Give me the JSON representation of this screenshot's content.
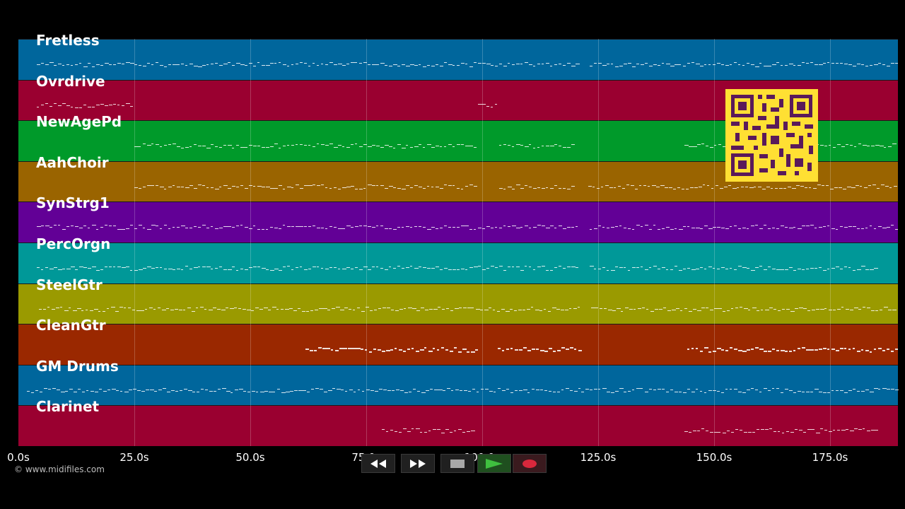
{
  "tracks": [
    {
      "name": "Fretless",
      "color": "#00669c"
    },
    {
      "name": "Ovrdrive",
      "color": "#9a0030"
    },
    {
      "name": "NewAgePd",
      "color": "#009a2a"
    },
    {
      "name": "AahChoir",
      "color": "#9a6400"
    },
    {
      "name": "SynStrg1",
      "color": "#620096"
    },
    {
      "name": "PercOrgn",
      "color": "#009898"
    },
    {
      "name": "SteelGtr",
      "color": "#9a9a00"
    },
    {
      "name": "CleanGtr",
      "color": "#9a2800"
    },
    {
      "name": "GM Drums",
      "color": "#00669c"
    },
    {
      "name": "Clarinet",
      "color": "#9a0030"
    }
  ],
  "timeline": {
    "ticks": [
      "0.0s",
      "25.0s",
      "50.0s",
      "75.0s",
      "100.0s",
      "125.0s",
      "150.0s",
      "175.0s"
    ],
    "max_seconds": 190
  },
  "copyright": "© www.midifiles.com",
  "transport": {
    "buttons": [
      "rewind-icon",
      "fast-forward-icon",
      "stop-icon",
      "play-icon",
      "record-icon"
    ],
    "colors": {
      "play": "#3fbf3f",
      "record": "#d8283c",
      "stop": "#a8a8a8"
    }
  },
  "qr_color": "#ffe033"
}
